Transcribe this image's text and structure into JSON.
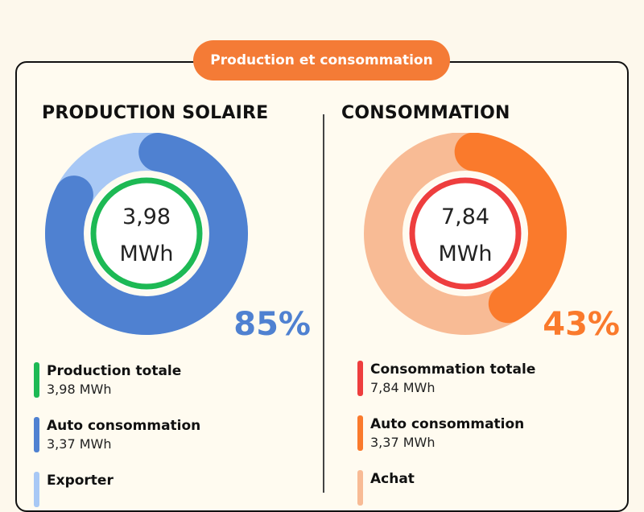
{
  "header": {
    "badge": "Production et consommation"
  },
  "colors": {
    "background": "#fdf8ec",
    "accent_orange": "#f47b36",
    "solar_blue": "#4f81d1",
    "solar_light": "#a8c8f5",
    "cons_orange": "#fa7a2c",
    "cons_light": "#f8bb95",
    "green": "#1db954",
    "red": "#ee3e3e",
    "export_light": "#a8c8f5",
    "achat_light": "#f8bb95"
  },
  "chart_data": [
    {
      "type": "pie",
      "title": "PRODUCTION SOLAIRE",
      "center_value": "3,98",
      "center_unit": "MWh",
      "percent_label": "85%",
      "categories": [
        "Auto consommation",
        "Exporter"
      ],
      "values": [
        85,
        15
      ],
      "legend": [
        {
          "title": "Production totale",
          "value": "3,98 MWh",
          "color": "#1db954"
        },
        {
          "title": "Auto consommation",
          "value": "3,37 MWh",
          "color": "#4f81d1"
        },
        {
          "title": "Exporter",
          "value": "",
          "color": "#a8c8f5"
        }
      ]
    },
    {
      "type": "pie",
      "title": "CONSOMMATION",
      "center_value": "7,84",
      "center_unit": "MWh",
      "percent_label": "43%",
      "categories": [
        "Auto consommation",
        "Achat"
      ],
      "values": [
        43,
        57
      ],
      "legend": [
        {
          "title": "Consommation totale",
          "value": "7,84 MWh",
          "color": "#ee3e3e"
        },
        {
          "title": "Auto consommation",
          "value": "3,37 MWh",
          "color": "#fa7a2c"
        },
        {
          "title": "Achat",
          "value": "",
          "color": "#f8bb95"
        }
      ]
    }
  ]
}
